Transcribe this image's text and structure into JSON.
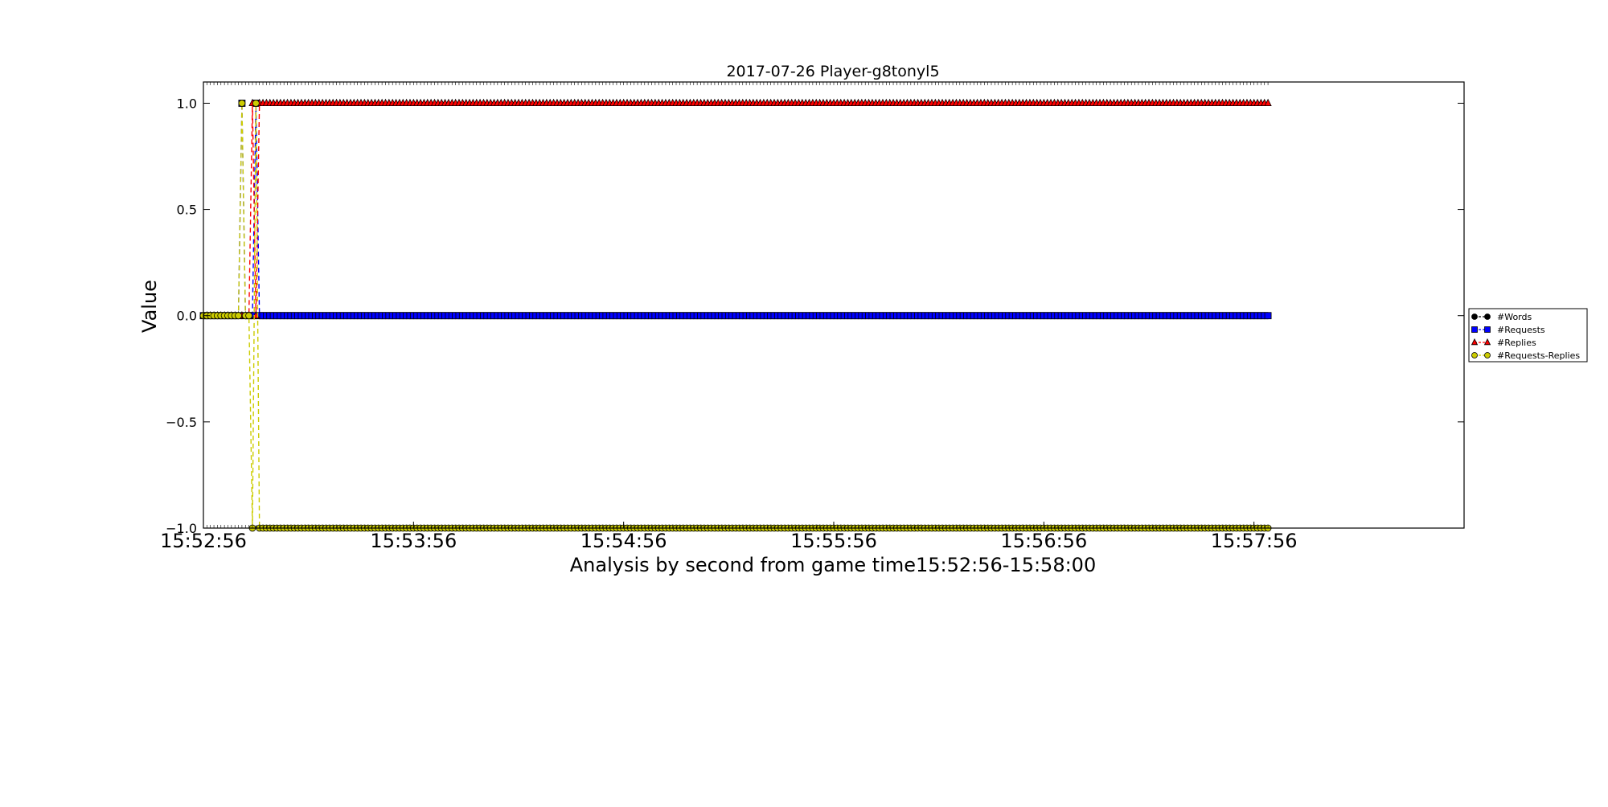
{
  "chart_data": {
    "type": "line",
    "title": "2017-07-26 Player-g8tonyl5",
    "xlabel": "Analysis by second from game time15:52:56-15:58:00",
    "ylabel": "Value",
    "x_start_time": "15:52:56",
    "x_end_time": "15:58:00",
    "x_points_end_time": "15:58:00",
    "x_ticks": [
      "15:52:56",
      "15:53:56",
      "15:54:56",
      "15:55:56",
      "15:56:56",
      "15:57:56"
    ],
    "x_range": [
      "15:52:56",
      "15:58:56"
    ],
    "y_ticks": [
      1.0,
      0.5,
      0.0,
      -0.5,
      -1.0
    ],
    "y_tick_labels": [
      "1.0",
      "0.5",
      "0.0",
      "−0.5",
      "−1.0"
    ],
    "ylim": [
      -1.0,
      1.1
    ],
    "grid": false,
    "legend_position": "right",
    "series": [
      {
        "name": "#Words",
        "color": "#000000",
        "marker": "circle",
        "line_style": "dashed",
        "values_description": "0 throughout",
        "segments": [
          {
            "from": "15:52:56",
            "to": "15:58:00",
            "value": 0
          }
        ]
      },
      {
        "name": "#Requests",
        "color": "#0000ff",
        "marker": "square",
        "line_style": "dashed",
        "segments": [
          {
            "from": "15:52:56",
            "to": "15:53:06",
            "value": 0
          },
          {
            "from": "15:53:07",
            "to": "15:53:07",
            "value": 1
          },
          {
            "from": "15:53:08",
            "to": "15:53:10",
            "value": 0
          },
          {
            "from": "15:53:11",
            "to": "15:53:11",
            "value": 1
          },
          {
            "from": "15:53:12",
            "to": "15:58:00",
            "value": 0
          }
        ]
      },
      {
        "name": "#Replies",
        "color": "#ff0000",
        "marker": "triangle",
        "line_style": "dashed",
        "segments": [
          {
            "from": "15:52:56",
            "to": "15:53:09",
            "value": 0
          },
          {
            "from": "15:53:10",
            "to": "15:53:10",
            "value": 1
          },
          {
            "from": "15:53:11",
            "to": "15:53:11",
            "value": 0
          },
          {
            "from": "15:53:12",
            "to": "15:58:00",
            "value": 1
          }
        ]
      },
      {
        "name": "#Requests-Replies",
        "color": "#cccc00",
        "marker": "circle",
        "line_style": "dashed",
        "segments": [
          {
            "from": "15:52:56",
            "to": "15:53:06",
            "value": 0
          },
          {
            "from": "15:53:07",
            "to": "15:53:07",
            "value": 1
          },
          {
            "from": "15:53:08",
            "to": "15:53:09",
            "value": 0
          },
          {
            "from": "15:53:10",
            "to": "15:53:10",
            "value": -1
          },
          {
            "from": "15:53:11",
            "to": "15:53:11",
            "value": 1
          },
          {
            "from": "15:53:12",
            "to": "15:58:00",
            "value": -1
          }
        ]
      }
    ]
  }
}
